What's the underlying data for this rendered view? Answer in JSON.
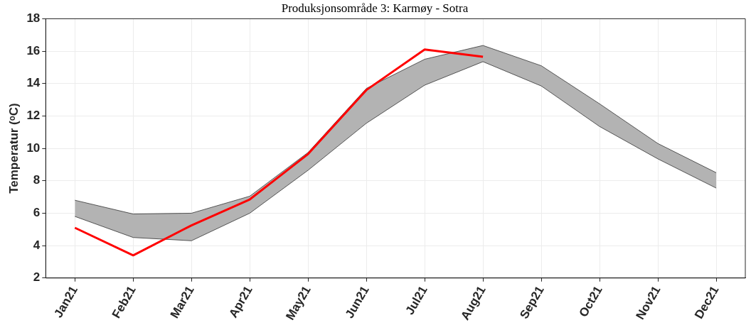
{
  "chart_data": {
    "type": "line",
    "title": "Produksjonsområde 3: Karmøy - Sotra",
    "ylabel": "Temperatur (ᵒC)",
    "categories": [
      "Jan21",
      "Feb21",
      "Mar21",
      "Apr21",
      "May21",
      "Jun21",
      "Jul21",
      "Aug21",
      "Sep21",
      "Oct21",
      "Nov21",
      "Dec21"
    ],
    "series": [
      {
        "type": "line",
        "color": "#333333",
        "values": [
          5.8,
          4.5,
          4.3,
          6.0,
          8.65,
          11.55,
          13.9,
          15.35,
          13.85,
          11.35,
          9.35,
          7.55
        ]
      },
      {
        "type": "area",
        "color": "#b3b3b3",
        "values": [
          6.8,
          5.95,
          6.0,
          7.05,
          9.75,
          13.7,
          15.5,
          16.35,
          15.1,
          12.75,
          10.3,
          8.5
        ]
      },
      {
        "type": "line",
        "color": "#ff0000",
        "values": [
          5.1,
          3.4,
          5.25,
          6.85,
          9.65,
          13.6,
          16.1,
          15.65,
          null,
          null,
          null,
          null
        ]
      }
    ],
    "ylim": [
      2,
      18
    ],
    "yticks": [
      2,
      4,
      6,
      8,
      10,
      12,
      14,
      16,
      18
    ],
    "grid": true,
    "legend": false,
    "marker": "none",
    "line_style": "solid"
  }
}
